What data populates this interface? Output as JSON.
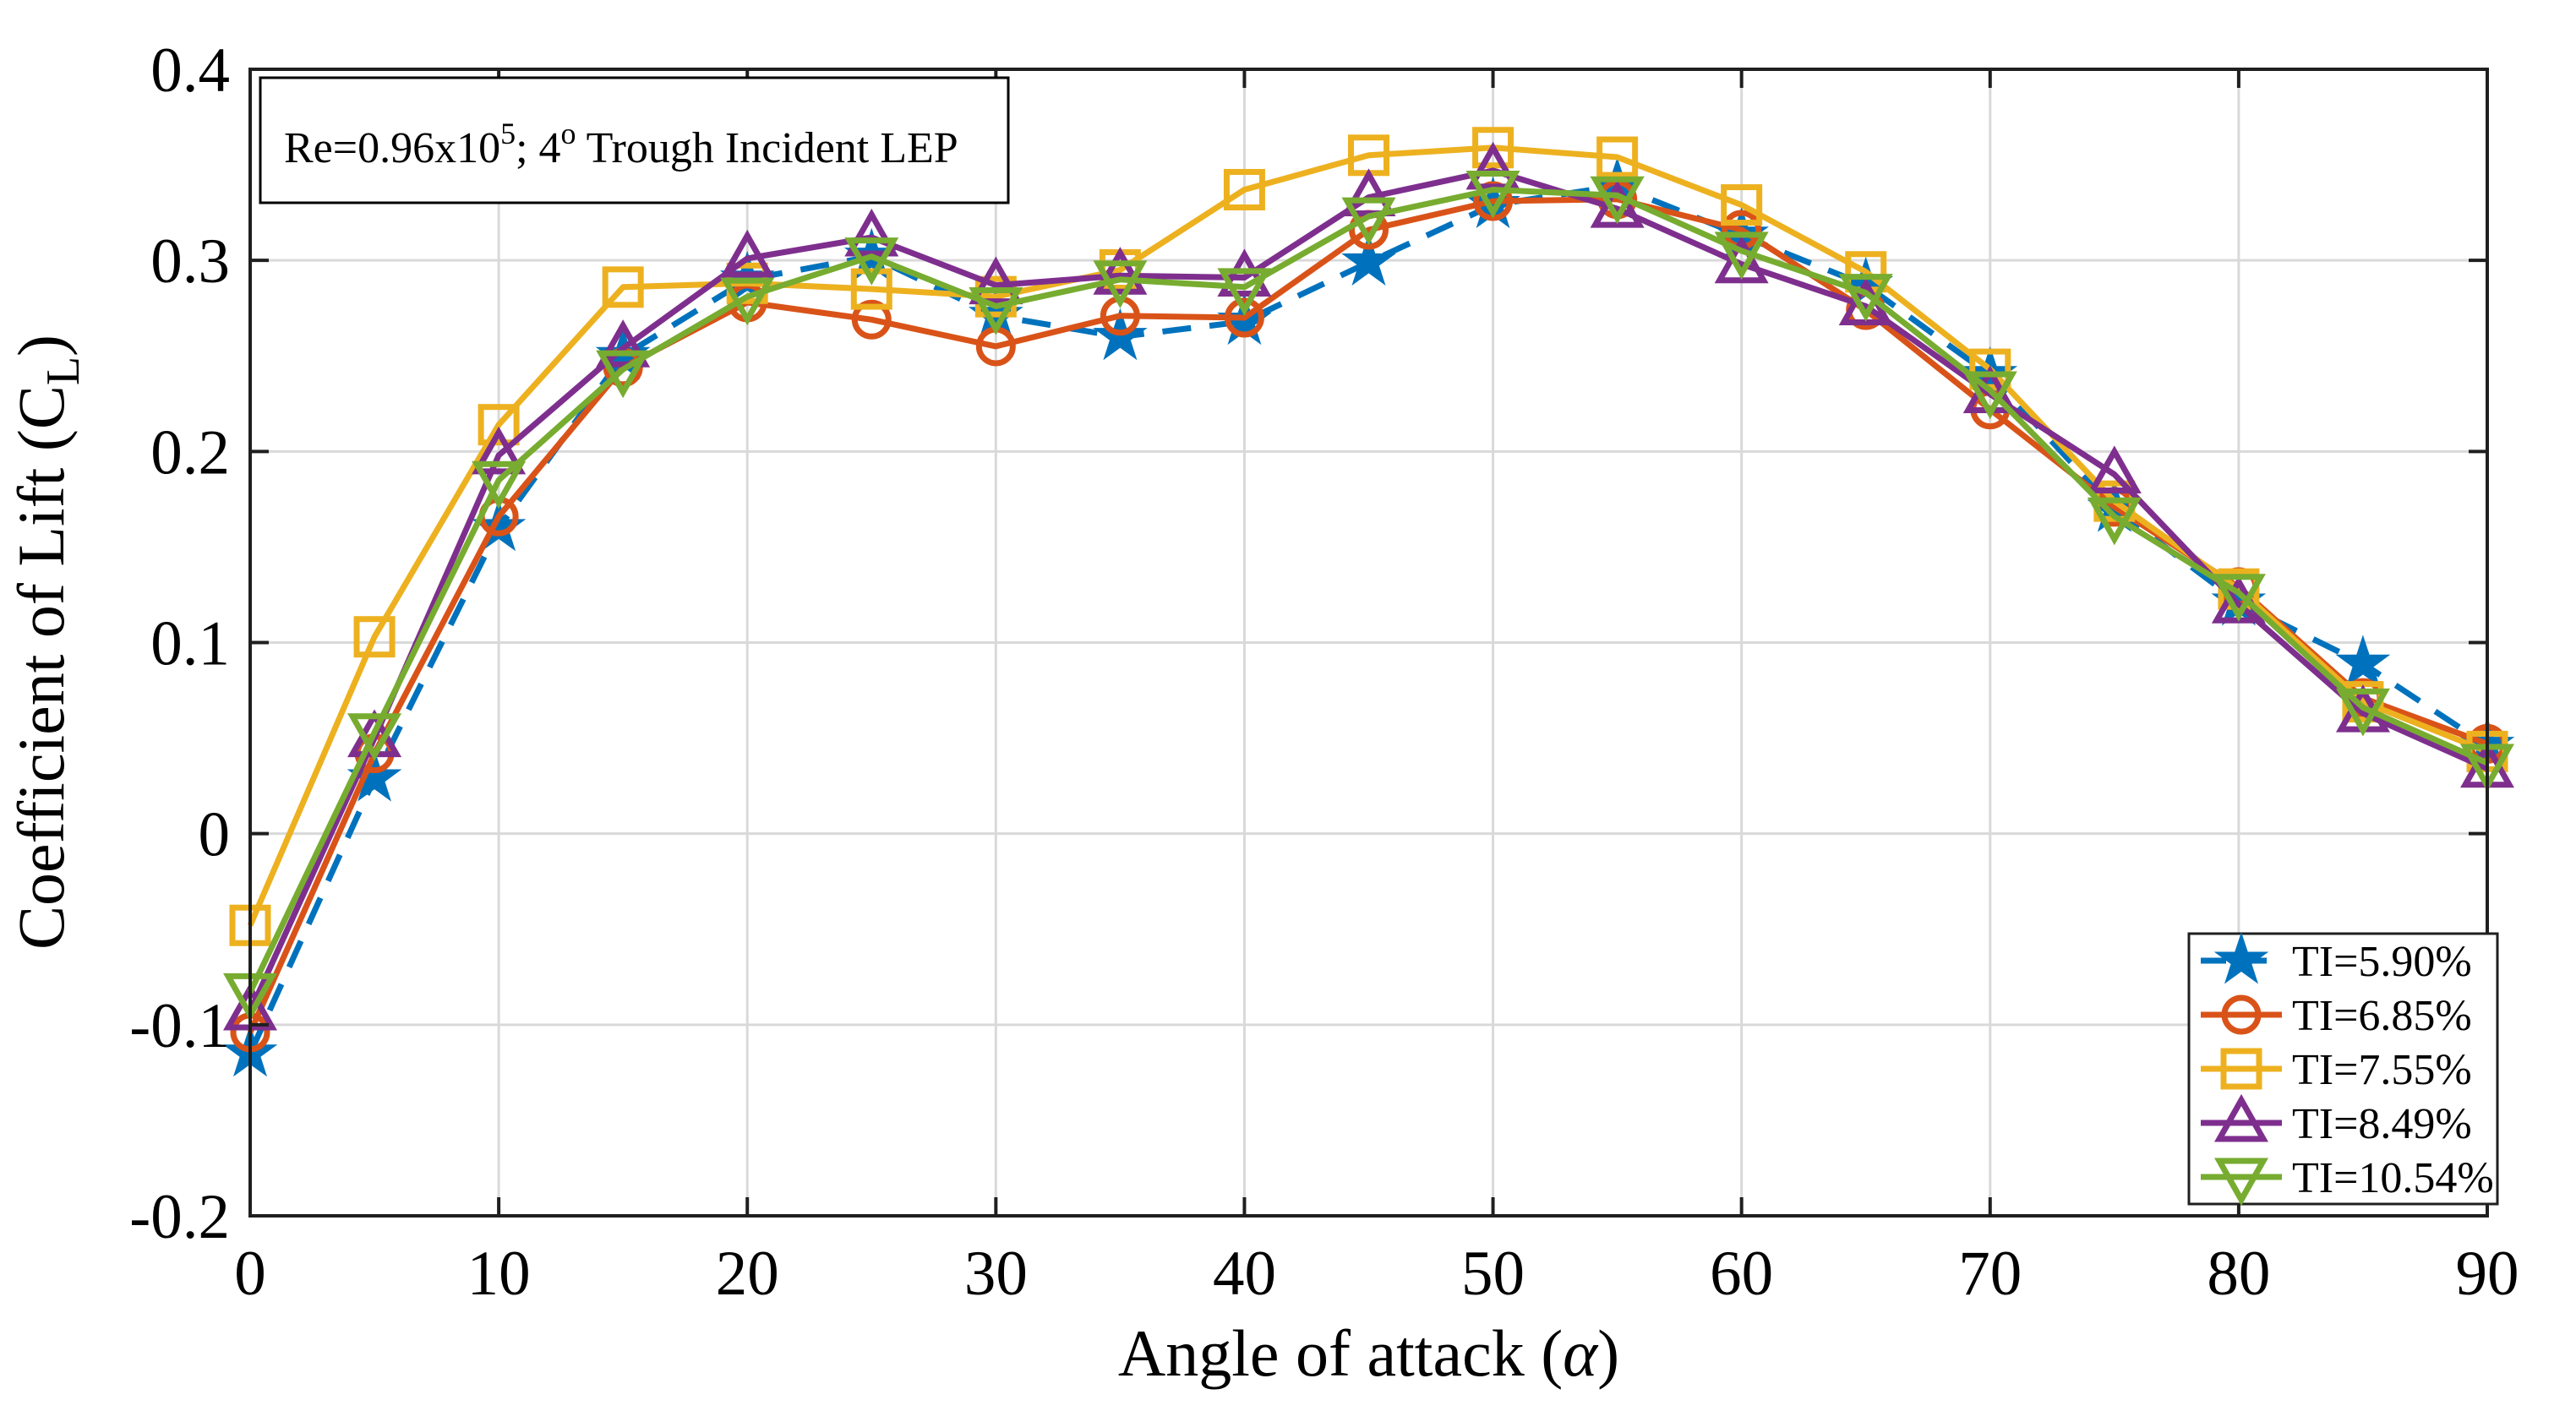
{
  "chart_data": {
    "type": "line",
    "annotation": "Re=0.96x10^5; 4deg Trough Incident LEP",
    "annotation_parts": {
      "base1": "Re=0.96x10",
      "sup1": "5",
      "base2": "; 4",
      "sup2": "o",
      "base3": " Trough Incident LEP"
    },
    "xlabel": "Angle of attack (α)",
    "xlabel_parts": {
      "base": "Angle of attack (",
      "alpha": "α",
      "close": ")"
    },
    "ylabel": "Coefficient of Lift (C_L)",
    "ylabel_parts": {
      "base": "Coefficient of Lift (C",
      "sub": "L",
      "close": ")"
    },
    "xlim": [
      0,
      90
    ],
    "ylim": [
      -0.2,
      0.4
    ],
    "grid": true,
    "legend_position": "lower right",
    "x_tick_labels": [
      "0",
      "10",
      "20",
      "30",
      "40",
      "50",
      "60",
      "70",
      "80",
      "90"
    ],
    "x_ticks": [
      0,
      10,
      20,
      30,
      40,
      50,
      60,
      70,
      80,
      90
    ],
    "y_tick_labels": [
      "-0.2",
      "-0.1",
      "0",
      "0.1",
      "0.2",
      "0.3",
      "0.4"
    ],
    "y_ticks": [
      -0.2,
      -0.1,
      0,
      0.1,
      0.2,
      0.3,
      0.4
    ],
    "x": [
      0,
      5,
      10,
      15,
      20,
      25,
      30,
      35,
      40,
      45,
      50,
      55,
      60,
      65,
      70,
      75,
      80,
      85,
      90
    ],
    "series": [
      {
        "name": "TI=5.90%",
        "color": "#0072BD",
        "marker": "star",
        "line": "dashed",
        "values": [
          -0.115,
          0.029,
          0.16,
          0.25,
          0.29,
          0.302,
          0.271,
          0.26,
          0.268,
          0.299,
          0.329,
          0.339,
          0.313,
          0.287,
          0.24,
          0.17,
          0.121,
          0.089,
          0.046
        ]
      },
      {
        "name": "TI=6.85%",
        "color": "#D95319",
        "marker": "circle",
        "line": "solid",
        "values": [
          -0.104,
          0.042,
          0.166,
          0.244,
          0.278,
          0.269,
          0.255,
          0.271,
          0.27,
          0.316,
          0.331,
          0.332,
          0.316,
          0.274,
          0.222,
          0.171,
          0.129,
          0.071,
          0.047
        ]
      },
      {
        "name": "TI=7.55%",
        "color": "#EDB120",
        "marker": "square",
        "line": "solid",
        "values": [
          -0.048,
          0.103,
          0.214,
          0.286,
          0.288,
          0.285,
          0.281,
          0.295,
          0.337,
          0.355,
          0.359,
          0.354,
          0.329,
          0.294,
          0.243,
          0.174,
          0.128,
          0.069,
          0.043
        ]
      },
      {
        "name": "TI=8.49%",
        "color": "#7E2F8E",
        "marker": "triangle-up",
        "line": "solid",
        "values": [
          -0.093,
          0.05,
          0.198,
          0.254,
          0.301,
          0.312,
          0.287,
          0.292,
          0.291,
          0.333,
          0.347,
          0.327,
          0.298,
          0.276,
          0.23,
          0.188,
          0.12,
          0.063,
          0.034
        ]
      },
      {
        "name": "TI=10.54%",
        "color": "#77AC30",
        "marker": "triangle-down",
        "line": "solid",
        "values": [
          -0.083,
          0.053,
          0.185,
          0.243,
          0.281,
          0.302,
          0.276,
          0.29,
          0.286,
          0.323,
          0.337,
          0.334,
          0.305,
          0.283,
          0.232,
          0.166,
          0.126,
          0.066,
          0.037
        ]
      }
    ],
    "colors": {
      "axis": "#1f1f1f",
      "grid": "#d9d9d9",
      "background": "#ffffff"
    }
  }
}
